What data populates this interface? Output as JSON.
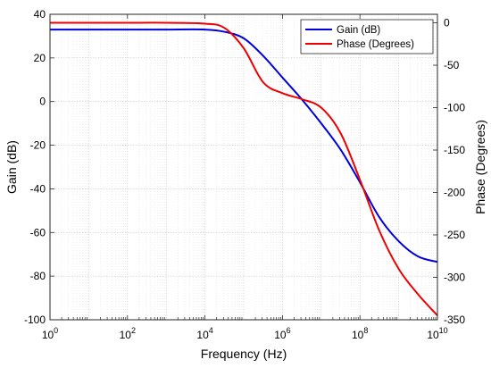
{
  "chart_data": {
    "type": "line",
    "title": "",
    "xlabel": "Frequency (Hz)",
    "ylabel": "Gain (dB)",
    "y2label": "Phase (Degrees)",
    "x_scale": "log",
    "xlim": [
      1,
      10000000000
    ],
    "ylim": [
      -100,
      40
    ],
    "y2lim": [
      -350,
      10
    ],
    "grid": true,
    "legend_position": "top-right",
    "x_ticks": [
      {
        "value": 1,
        "base": "10",
        "exp": "0"
      },
      {
        "value": 100,
        "base": "10",
        "exp": "2"
      },
      {
        "value": 10000,
        "base": "10",
        "exp": "4"
      },
      {
        "value": 1000000,
        "base": "10",
        "exp": "6"
      },
      {
        "value": 100000000,
        "base": "10",
        "exp": "8"
      },
      {
        "value": 10000000000,
        "base": "10",
        "exp": "10"
      }
    ],
    "y_ticks": [
      40,
      20,
      0,
      -20,
      -40,
      -60,
      -80,
      -100
    ],
    "y2_ticks": [
      0,
      -50,
      -100,
      -150,
      -200,
      -250,
      -300,
      -350
    ],
    "series": [
      {
        "name": "Gain (dB)",
        "axis": "left",
        "color": "#0000dd",
        "x": [
          1,
          10,
          100,
          1000,
          10000,
          31623,
          100000,
          316228,
          1000000,
          3162278,
          10000000,
          31622777,
          100000000,
          316227766,
          1000000000,
          3162277660,
          10000000000
        ],
        "y": [
          33,
          33,
          33,
          33,
          33,
          32,
          29,
          21,
          11,
          1,
          -10,
          -22,
          -37,
          -53,
          -64,
          -71,
          -73.5
        ]
      },
      {
        "name": "Phase (Degrees)",
        "axis": "right",
        "color": "#ee0000",
        "x": [
          1,
          10,
          100,
          1000,
          10000,
          31623,
          100000,
          316228,
          1000000,
          3162278,
          10000000,
          31622777,
          100000000,
          316227766,
          1000000000,
          3162277660,
          10000000000
        ],
        "y": [
          0,
          0,
          0,
          0,
          -1,
          -6,
          -30,
          -70,
          -83,
          -90,
          -100,
          -130,
          -185,
          -245,
          -290,
          -320,
          -345
        ]
      }
    ]
  }
}
